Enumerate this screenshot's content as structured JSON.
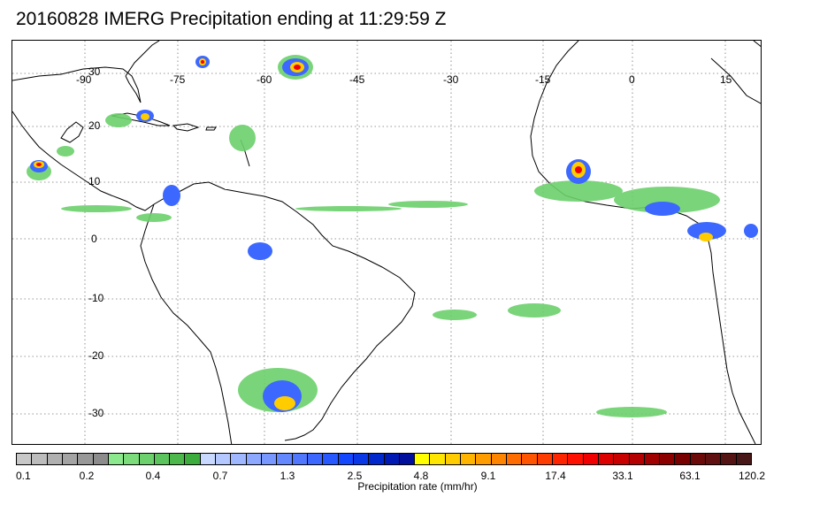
{
  "title": "20160828 IMERG Precipitation ending at 11:29:59 Z",
  "map": {
    "lon_labels": [
      "-90",
      "-75",
      "-60",
      "-45",
      "-30",
      "-15",
      "0",
      "15"
    ],
    "lat_labels": [
      "30",
      "20",
      "10",
      "0",
      "-10",
      "-20",
      "-30"
    ]
  },
  "colorbar": {
    "title": "Precipitation rate (mm/hr)",
    "tick_labels": [
      "0.1",
      "0.2",
      "0.4",
      "0.7",
      "1.3",
      "2.5",
      "4.8",
      "9.1",
      "17.4",
      "33.1",
      "63.1",
      "120.2"
    ],
    "colors": [
      "#c8c8c8",
      "#bcbcbc",
      "#b0b0b0",
      "#a4a4a4",
      "#989898",
      "#8c8c8c",
      "#8ce88c",
      "#7cdc7c",
      "#6cd06c",
      "#5cc45c",
      "#4cb84c",
      "#3cac3c",
      "#c8d8ff",
      "#b4c8ff",
      "#a0b8ff",
      "#8ca8ff",
      "#7898ff",
      "#6488ff",
      "#5078ff",
      "#3c68ff",
      "#2858ff",
      "#1448ff",
      "#0a38e6",
      "#0028cc",
      "#0018b4",
      "#00109c",
      "#ffff00",
      "#ffe600",
      "#ffcc00",
      "#ffb400",
      "#ff9c00",
      "#ff8400",
      "#ff6c00",
      "#ff5400",
      "#ff3c00",
      "#ff2400",
      "#ff1000",
      "#f00000",
      "#dc0000",
      "#c80000",
      "#b40000",
      "#a00000",
      "#8c0000",
      "#780000",
      "#6c0a0a",
      "#601010",
      "#541414",
      "#481818"
    ]
  }
}
